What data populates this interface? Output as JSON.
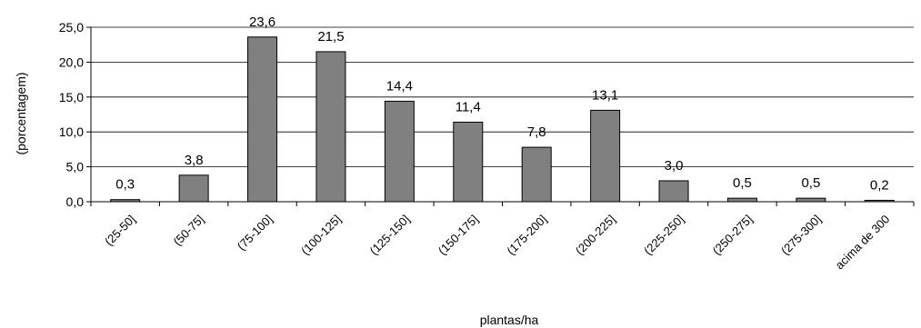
{
  "chart_data": {
    "type": "bar",
    "categories": [
      "(25-50]",
      "(50-75]",
      "(75-100]",
      "(100-125]",
      "(125-150]",
      "(150-175]",
      "(175-200]",
      "(200-225]",
      "(225-250]",
      "(250-275]",
      "(275-300]",
      "acima de 300"
    ],
    "values": [
      0.3,
      3.8,
      23.6,
      21.5,
      14.4,
      11.4,
      7.8,
      13.1,
      3.0,
      0.5,
      0.5,
      0.2
    ],
    "value_labels": [
      "0,3",
      "3,8",
      "23,6",
      "21,5",
      "14,4",
      "11,4",
      "7,8",
      "13,1",
      "3,0",
      "0,5",
      "0,5",
      "0,2"
    ],
    "title": "",
    "xlabel": "plantas/ha",
    "ylabel": "(porcentagem)",
    "ylim": [
      0,
      25
    ],
    "yticks": [
      0,
      5,
      10,
      15,
      20,
      25
    ],
    "ytick_labels": [
      "0,0",
      "5,0",
      "10,0",
      "15,0",
      "20,0",
      "25,0"
    ],
    "grid": true,
    "legend": "none",
    "bar_color": "#808080",
    "bar_edge_color": "#000000"
  }
}
